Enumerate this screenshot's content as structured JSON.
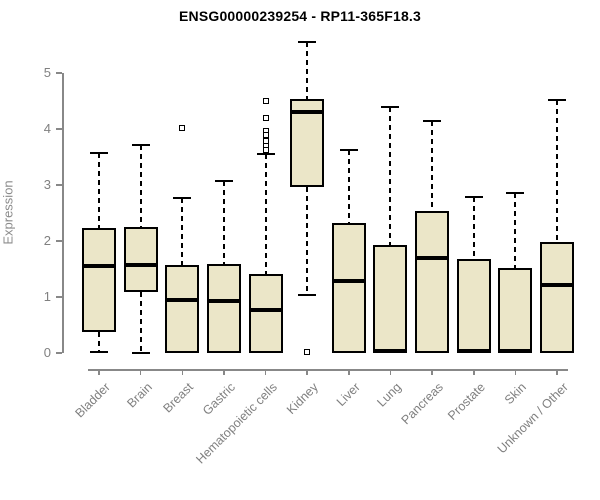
{
  "chart_data": {
    "type": "box",
    "title": "ENSG00000239254 - RP11-365F18.3",
    "ylabel": "Expression",
    "xlabel": "",
    "ylim": [
      0,
      5
    ],
    "yticks": [
      0,
      1,
      2,
      3,
      4,
      5
    ],
    "grid": false,
    "legend": "none",
    "categories": [
      "Bladder",
      "Brain",
      "Breast",
      "Gastric",
      "Hematopoietic cells",
      "Kidney",
      "Liver",
      "Lung",
      "Pancreas",
      "Prostate",
      "Skin",
      "Unknown / Other"
    ],
    "boxes": [
      {
        "category": "Bladder",
        "whisker_low": 0.02,
        "q1": 0.37,
        "median": 1.55,
        "q3": 2.23,
        "whisker_high": 3.58,
        "outliers": []
      },
      {
        "category": "Brain",
        "whisker_low": 0.0,
        "q1": 1.09,
        "median": 1.57,
        "q3": 2.25,
        "whisker_high": 3.71,
        "outliers": []
      },
      {
        "category": "Breast",
        "whisker_low": 0.0,
        "q1": 0.0,
        "median": 0.95,
        "q3": 1.57,
        "whisker_high": 2.76,
        "outliers": [
          4.02
        ]
      },
      {
        "category": "Gastric",
        "whisker_low": 0.0,
        "q1": 0.0,
        "median": 0.93,
        "q3": 1.59,
        "whisker_high": 3.07,
        "outliers": []
      },
      {
        "category": "Hematopoietic cells",
        "whisker_low": 0.0,
        "q1": 0.0,
        "median": 0.77,
        "q3": 1.41,
        "whisker_high": 3.55,
        "outliers": [
          4.5,
          4.2,
          3.97,
          3.9,
          3.78,
          3.7,
          3.62
        ]
      },
      {
        "category": "Kidney",
        "whisker_low": 1.04,
        "q1": 2.96,
        "median": 4.3,
        "q3": 4.54,
        "whisker_high": 5.55,
        "outliers": [
          0.02
        ]
      },
      {
        "category": "Liver",
        "whisker_low": 0.0,
        "q1": 0.0,
        "median": 1.28,
        "q3": 2.32,
        "whisker_high": 3.63,
        "outliers": []
      },
      {
        "category": "Lung",
        "whisker_low": 0.0,
        "q1": 0.0,
        "median": 0.03,
        "q3": 1.93,
        "whisker_high": 4.4,
        "outliers": []
      },
      {
        "category": "Pancreas",
        "whisker_low": 0.0,
        "q1": 0.0,
        "median": 1.7,
        "q3": 2.54,
        "whisker_high": 4.14,
        "outliers": []
      },
      {
        "category": "Prostate",
        "whisker_low": 0.0,
        "q1": 0.0,
        "median": 0.03,
        "q3": 1.68,
        "whisker_high": 2.79,
        "outliers": []
      },
      {
        "category": "Skin",
        "whisker_low": 0.0,
        "q1": 0.0,
        "median": 0.03,
        "q3": 1.52,
        "whisker_high": 2.86,
        "outliers": []
      },
      {
        "category": "Unknown / Other",
        "whisker_low": 0.0,
        "q1": 0.0,
        "median": 1.22,
        "q3": 1.98,
        "whisker_high": 4.52,
        "outliers": []
      }
    ],
    "colors": {
      "box_fill": "#ebe6c8",
      "box_border": "#000000",
      "median": "#000000",
      "whisker": "#000000",
      "axis": "#888888",
      "tick_text": "#808080",
      "title_text": "#000000",
      "background": "#ffffff"
    }
  }
}
